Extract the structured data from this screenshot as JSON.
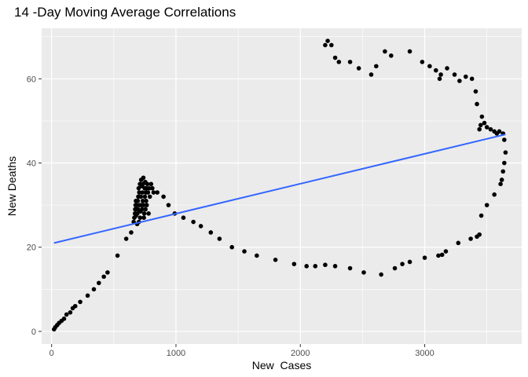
{
  "chart_data": {
    "type": "scatter",
    "title": "14 -Day Moving Average Correlations",
    "xlabel": "New  Cases",
    "ylabel": "New Deaths",
    "xlim": [
      -80,
      3780
    ],
    "ylim": [
      -3,
      72
    ],
    "x_ticks": [
      0,
      1000,
      2000,
      3000
    ],
    "y_ticks": [
      0,
      20,
      40,
      60
    ],
    "grid": true,
    "background_color": "#EBEBEB",
    "point_color": "#000000",
    "series": [
      {
        "type": "points",
        "x": [
          20,
          30,
          45,
          60,
          80,
          100,
          120,
          150,
          170,
          190,
          230,
          290,
          340,
          380,
          420,
          450,
          530,
          600,
          640,
          660,
          665,
          670,
          672,
          675,
          678,
          680,
          682,
          685,
          688,
          690,
          693,
          695,
          697,
          700,
          702,
          705,
          708,
          710,
          712,
          715,
          718,
          720,
          722,
          725,
          728,
          730,
          733,
          735,
          738,
          740,
          742,
          745,
          748,
          750,
          753,
          755,
          758,
          760,
          763,
          765,
          770,
          775,
          780,
          785,
          790,
          800,
          810,
          820,
          850,
          900,
          940,
          990,
          1060,
          1140,
          1200,
          1280,
          1350,
          1450,
          1550,
          1650,
          1800,
          1950,
          2050,
          2120,
          2200,
          2280,
          2400,
          2510,
          2650,
          2760,
          2820,
          2880,
          3000,
          3110,
          3140,
          3170,
          3270,
          3370,
          3420,
          3440,
          3455,
          3500,
          3560,
          3610,
          3620,
          3630,
          3640,
          3650,
          3640,
          3630,
          3600,
          3580,
          3560,
          3530,
          3500,
          3480,
          3460,
          3450,
          3440,
          3420,
          3410,
          3380,
          3330,
          3280,
          3240,
          3180,
          3130,
          3120,
          3090,
          3040,
          2980,
          2880,
          2730,
          2680,
          2610,
          2570,
          2470,
          2400,
          2310,
          2280,
          2250,
          2220,
          2200
        ],
        "y": [
          0.5,
          1,
          1.5,
          2,
          2.5,
          3,
          4,
          4.5,
          5.5,
          6,
          7,
          8.5,
          10,
          11.5,
          13,
          14,
          18,
          22,
          23.5,
          26,
          27,
          28,
          29,
          30,
          31,
          27.5,
          29,
          30,
          25.5,
          28,
          31,
          29,
          32,
          34,
          26,
          33,
          30,
          35,
          27,
          28.5,
          32,
          36,
          30,
          34.5,
          29,
          33,
          31,
          35,
          36.5,
          30,
          27,
          28,
          34,
          32,
          35.5,
          29,
          33,
          31,
          34,
          30,
          35,
          33,
          28,
          34,
          32,
          35,
          34,
          33,
          33,
          32,
          30,
          28,
          27,
          26,
          25,
          23.5,
          22,
          20,
          19,
          18,
          17,
          16,
          15.5,
          15.5,
          15.8,
          15.5,
          15,
          14,
          13.5,
          15,
          16,
          16.5,
          17.5,
          18,
          18.2,
          19,
          21,
          22,
          22.5,
          23,
          27.5,
          30,
          32.5,
          35,
          36,
          38,
          40,
          42.5,
          45.5,
          47,
          47.5,
          47,
          47.5,
          48,
          48.5,
          49.5,
          51,
          49,
          48,
          54,
          57,
          60,
          60.5,
          59.5,
          61,
          62.5,
          61,
          60,
          62,
          63,
          64,
          66.5,
          65.5,
          66.5,
          63,
          61,
          62.5,
          64,
          64,
          65,
          68,
          69,
          68
        ]
      },
      {
        "type": "line",
        "name": "",
        "color": "#3366FF",
        "x": [
          20,
          3650
        ],
        "y": [
          21,
          46.8
        ]
      }
    ]
  }
}
